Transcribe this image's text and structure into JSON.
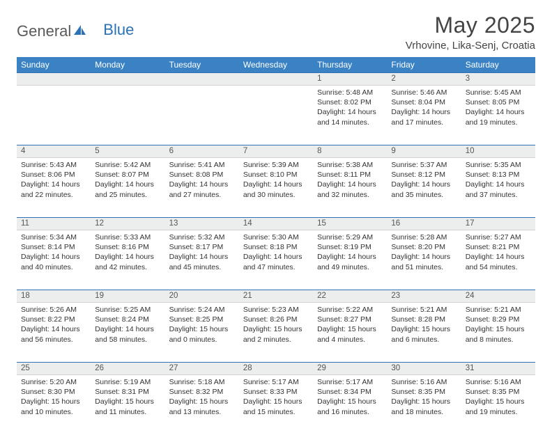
{
  "logo": {
    "general": "General",
    "blue": "Blue"
  },
  "title": "May 2025",
  "location": "Vrhovine, Lika-Senj, Croatia",
  "colors": {
    "header_bg": "#3b82c4",
    "header_text": "#ffffff",
    "daynum_bg": "#eceded",
    "border": "#2a72b5",
    "logo_blue": "#2a72b5"
  },
  "day_headers": [
    "Sunday",
    "Monday",
    "Tuesday",
    "Wednesday",
    "Thursday",
    "Friday",
    "Saturday"
  ],
  "weeks": [
    [
      {
        "n": "",
        "sr": "",
        "ss": "",
        "dl": ""
      },
      {
        "n": "",
        "sr": "",
        "ss": "",
        "dl": ""
      },
      {
        "n": "",
        "sr": "",
        "ss": "",
        "dl": ""
      },
      {
        "n": "",
        "sr": "",
        "ss": "",
        "dl": ""
      },
      {
        "n": "1",
        "sr": "5:48 AM",
        "ss": "8:02 PM",
        "dl": "14 hours and 14 minutes."
      },
      {
        "n": "2",
        "sr": "5:46 AM",
        "ss": "8:04 PM",
        "dl": "14 hours and 17 minutes."
      },
      {
        "n": "3",
        "sr": "5:45 AM",
        "ss": "8:05 PM",
        "dl": "14 hours and 19 minutes."
      }
    ],
    [
      {
        "n": "4",
        "sr": "5:43 AM",
        "ss": "8:06 PM",
        "dl": "14 hours and 22 minutes."
      },
      {
        "n": "5",
        "sr": "5:42 AM",
        "ss": "8:07 PM",
        "dl": "14 hours and 25 minutes."
      },
      {
        "n": "6",
        "sr": "5:41 AM",
        "ss": "8:08 PM",
        "dl": "14 hours and 27 minutes."
      },
      {
        "n": "7",
        "sr": "5:39 AM",
        "ss": "8:10 PM",
        "dl": "14 hours and 30 minutes."
      },
      {
        "n": "8",
        "sr": "5:38 AM",
        "ss": "8:11 PM",
        "dl": "14 hours and 32 minutes."
      },
      {
        "n": "9",
        "sr": "5:37 AM",
        "ss": "8:12 PM",
        "dl": "14 hours and 35 minutes."
      },
      {
        "n": "10",
        "sr": "5:35 AM",
        "ss": "8:13 PM",
        "dl": "14 hours and 37 minutes."
      }
    ],
    [
      {
        "n": "11",
        "sr": "5:34 AM",
        "ss": "8:14 PM",
        "dl": "14 hours and 40 minutes."
      },
      {
        "n": "12",
        "sr": "5:33 AM",
        "ss": "8:16 PM",
        "dl": "14 hours and 42 minutes."
      },
      {
        "n": "13",
        "sr": "5:32 AM",
        "ss": "8:17 PM",
        "dl": "14 hours and 45 minutes."
      },
      {
        "n": "14",
        "sr": "5:30 AM",
        "ss": "8:18 PM",
        "dl": "14 hours and 47 minutes."
      },
      {
        "n": "15",
        "sr": "5:29 AM",
        "ss": "8:19 PM",
        "dl": "14 hours and 49 minutes."
      },
      {
        "n": "16",
        "sr": "5:28 AM",
        "ss": "8:20 PM",
        "dl": "14 hours and 51 minutes."
      },
      {
        "n": "17",
        "sr": "5:27 AM",
        "ss": "8:21 PM",
        "dl": "14 hours and 54 minutes."
      }
    ],
    [
      {
        "n": "18",
        "sr": "5:26 AM",
        "ss": "8:22 PM",
        "dl": "14 hours and 56 minutes."
      },
      {
        "n": "19",
        "sr": "5:25 AM",
        "ss": "8:24 PM",
        "dl": "14 hours and 58 minutes."
      },
      {
        "n": "20",
        "sr": "5:24 AM",
        "ss": "8:25 PM",
        "dl": "15 hours and 0 minutes."
      },
      {
        "n": "21",
        "sr": "5:23 AM",
        "ss": "8:26 PM",
        "dl": "15 hours and 2 minutes."
      },
      {
        "n": "22",
        "sr": "5:22 AM",
        "ss": "8:27 PM",
        "dl": "15 hours and 4 minutes."
      },
      {
        "n": "23",
        "sr": "5:21 AM",
        "ss": "8:28 PM",
        "dl": "15 hours and 6 minutes."
      },
      {
        "n": "24",
        "sr": "5:21 AM",
        "ss": "8:29 PM",
        "dl": "15 hours and 8 minutes."
      }
    ],
    [
      {
        "n": "25",
        "sr": "5:20 AM",
        "ss": "8:30 PM",
        "dl": "15 hours and 10 minutes."
      },
      {
        "n": "26",
        "sr": "5:19 AM",
        "ss": "8:31 PM",
        "dl": "15 hours and 11 minutes."
      },
      {
        "n": "27",
        "sr": "5:18 AM",
        "ss": "8:32 PM",
        "dl": "15 hours and 13 minutes."
      },
      {
        "n": "28",
        "sr": "5:17 AM",
        "ss": "8:33 PM",
        "dl": "15 hours and 15 minutes."
      },
      {
        "n": "29",
        "sr": "5:17 AM",
        "ss": "8:34 PM",
        "dl": "15 hours and 16 minutes."
      },
      {
        "n": "30",
        "sr": "5:16 AM",
        "ss": "8:35 PM",
        "dl": "15 hours and 18 minutes."
      },
      {
        "n": "31",
        "sr": "5:16 AM",
        "ss": "8:35 PM",
        "dl": "15 hours and 19 minutes."
      }
    ]
  ],
  "labels": {
    "sunrise": "Sunrise:",
    "sunset": "Sunset:",
    "daylight": "Daylight:"
  }
}
